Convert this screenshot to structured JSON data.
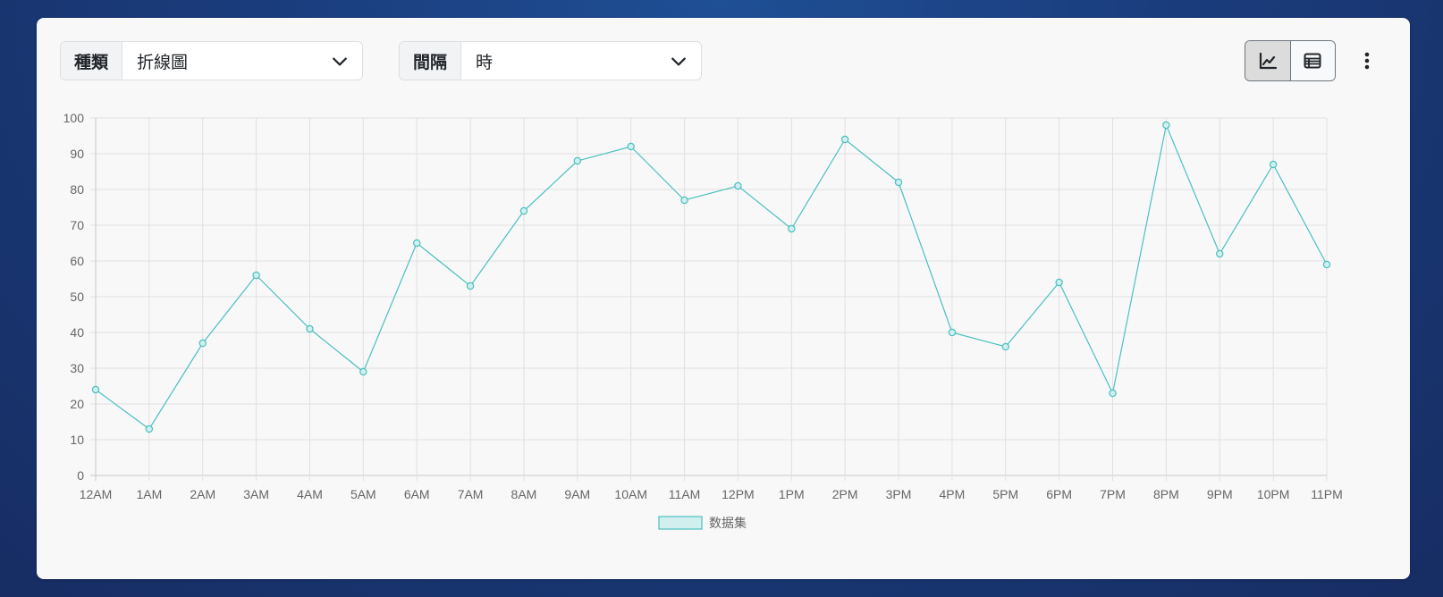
{
  "controls": {
    "type_label": "種類",
    "type_value": "折線圖",
    "interval_label": "間隔",
    "interval_value": "時"
  },
  "view": {
    "active": "line",
    "icons": [
      "line-chart-icon",
      "table-icon",
      "more-vertical-icon"
    ]
  },
  "colors": {
    "line": "#4bc0c0",
    "fill": "#d2efef",
    "grid": "#e0e0e0",
    "axis": "#c9c9c9"
  },
  "chart_data": {
    "type": "line",
    "categories": [
      "12AM",
      "1AM",
      "2AM",
      "3AM",
      "4AM",
      "5AM",
      "6AM",
      "7AM",
      "8AM",
      "9AM",
      "10AM",
      "11AM",
      "12PM",
      "1PM",
      "2PM",
      "3PM",
      "4PM",
      "5PM",
      "6PM",
      "7PM",
      "8PM",
      "9PM",
      "10PM",
      "11PM"
    ],
    "series": [
      {
        "name": "数据集",
        "values": [
          24,
          13,
          37,
          56,
          41,
          29,
          65,
          53,
          74,
          88,
          92,
          77,
          81,
          69,
          94,
          82,
          40,
          36,
          54,
          23,
          98,
          62,
          87,
          59
        ]
      }
    ],
    "yticks": [
      0,
      10,
      20,
      30,
      40,
      50,
      60,
      70,
      80,
      90,
      100
    ],
    "ylim": [
      0,
      100
    ],
    "grid": true,
    "legend": "bottom"
  }
}
